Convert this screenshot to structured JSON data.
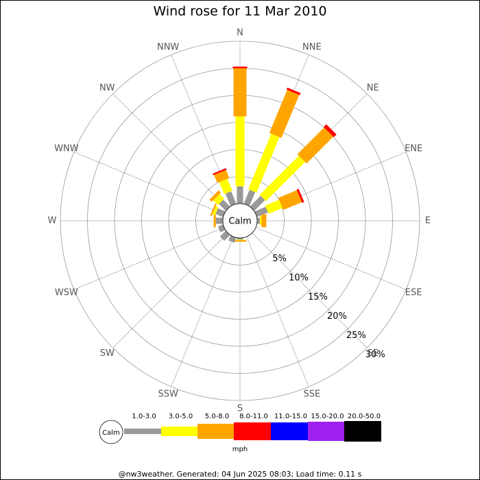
{
  "chart_data": {
    "type": "windrose",
    "title": "Wind rose for 11 Mar 2010",
    "categories": [
      "N",
      "NNE",
      "NE",
      "ENE",
      "E",
      "ESE",
      "SE",
      "SSE",
      "S",
      "SSW",
      "SW",
      "WSW",
      "W",
      "WNW",
      "NW",
      "NNW"
    ],
    "calm_label": "Calm",
    "unit_label": "mph",
    "footer": "@nw3weather. Generated: 04 Jun 2025 08:03; Load time: 0.11 s",
    "rlim": [
      0,
      30
    ],
    "rticks": [
      {
        "value": 5,
        "label": "5%"
      },
      {
        "value": 10,
        "label": "10%"
      },
      {
        "value": 15,
        "label": "15%"
      },
      {
        "value": 20,
        "label": "20%"
      },
      {
        "value": 25,
        "label": "25%"
      },
      {
        "value": 30,
        "label": "30%"
      }
    ],
    "series": [
      {
        "name": "1.0-3.0",
        "color": "#999999",
        "values": [
          3.2,
          2.8,
          2.8,
          2.2,
          0.5,
          0,
          0,
          0,
          0.3,
          1.0,
          1.5,
          1.0,
          1.3,
          1.5,
          1.8,
          2.5
        ]
      },
      {
        "name": "3.0-5.0",
        "color": "#ffff00",
        "values": [
          12.9,
          11.1,
          10.2,
          2.8,
          0.3,
          0,
          0,
          0,
          0.1,
          0,
          0,
          0,
          0,
          0.5,
          1.2,
          2.4
        ]
      },
      {
        "name": "5.0-8.0",
        "color": "#ffa500",
        "values": [
          8.9,
          8.6,
          7.0,
          3.7,
          0.9,
          0,
          0,
          0,
          0.3,
          0,
          0,
          0,
          0.4,
          0.3,
          0.6,
          1.6
        ]
      },
      {
        "name": "8.0-11.0",
        "color": "#ff0000",
        "values": [
          0.3,
          0.4,
          0.7,
          0.4,
          0,
          0,
          0,
          0,
          0,
          0,
          0,
          0,
          0,
          0,
          0,
          0.3
        ]
      },
      {
        "name": "11.0-15.0",
        "color": "#0000ff",
        "values": [
          0,
          0,
          0,
          0,
          0,
          0,
          0,
          0,
          0,
          0,
          0,
          0,
          0,
          0,
          0,
          0
        ]
      },
      {
        "name": "15.0-20.0",
        "color": "#a020f0",
        "values": [
          0,
          0,
          0,
          0,
          0,
          0,
          0,
          0,
          0,
          0,
          0,
          0,
          0,
          0,
          0,
          0
        ]
      },
      {
        "name": "20.0-50.0",
        "color": "#000000",
        "values": [
          0,
          0,
          0,
          0,
          0,
          0,
          0,
          0,
          0,
          0,
          0,
          0,
          0,
          0,
          0,
          0
        ]
      }
    ]
  }
}
